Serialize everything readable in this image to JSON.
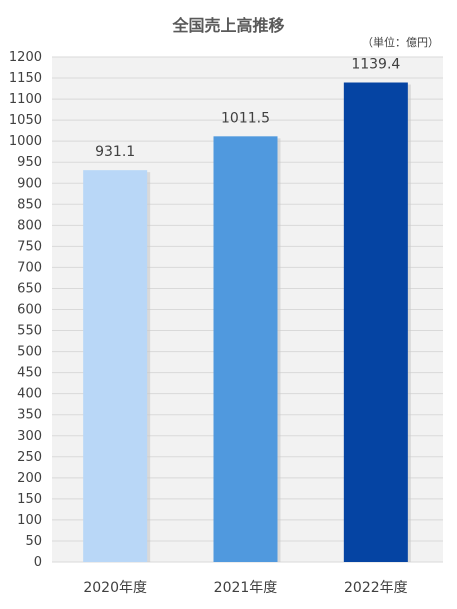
{
  "chart_data": {
    "type": "bar",
    "title": "全国売上高推移",
    "unit": "（単位：億円）",
    "categories": [
      "2020年度",
      "2021年度",
      "2022年度"
    ],
    "values": [
      931.1,
      1011.5,
      1139.4
    ],
    "value_labels": [
      "931.1",
      "1011.5",
      "1139.4"
    ],
    "bar_colors": [
      "#b9d7f7",
      "#5099de",
      "#0544a3"
    ],
    "ylim": [
      0,
      1200
    ],
    "ytick_step": 50,
    "grid": true,
    "plot_background": "#f2f2f2",
    "gridline_color": "#d9d9d9",
    "legend": "none"
  }
}
